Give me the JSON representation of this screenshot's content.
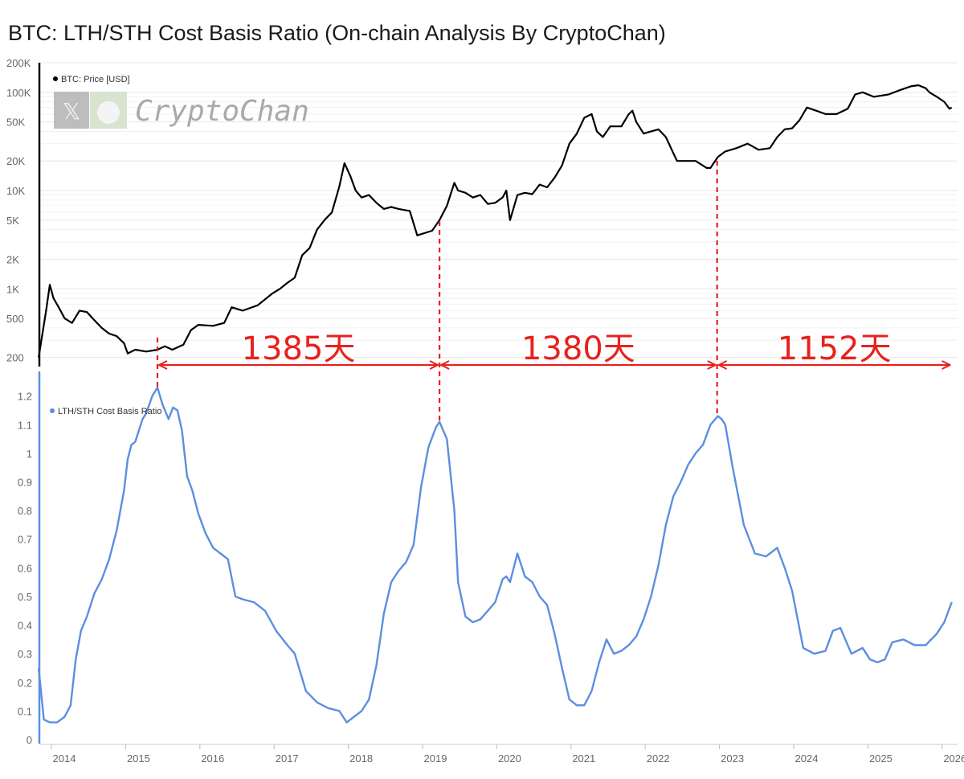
{
  "title": "BTC: LTH/STH Cost Basis Ratio (On-chain Analysis By CryptoChan)",
  "watermark": "CryptoChan",
  "colors": {
    "price": "#000000",
    "ratio": "#5b8fe0",
    "annotation": "#e8211d",
    "grid": "#e6e6e6",
    "axis": "#5b8fe0"
  },
  "chart_data": [
    {
      "type": "line",
      "title": "",
      "scale": "log",
      "ylim": [
        150,
        200000
      ],
      "yticks": [
        200,
        500,
        1000,
        2000,
        5000,
        10000,
        20000,
        50000,
        100000,
        200000
      ],
      "ytick_labels": [
        "200",
        "500",
        "1K",
        "2K",
        "5K",
        "10K",
        "20K",
        "50K",
        "100K",
        "200K"
      ],
      "legend": "top-left",
      "grid": true,
      "series": [
        {
          "name": "BTC: Price [USD]",
          "x": [
            2013.85,
            2013.95,
            2014.0,
            2014.05,
            2014.12,
            2014.2,
            2014.3,
            2014.4,
            2014.5,
            2014.6,
            2014.7,
            2014.8,
            2014.9,
            2015.0,
            2015.05,
            2015.15,
            2015.3,
            2015.45,
            2015.55,
            2015.65,
            2015.8,
            2015.9,
            2016.0,
            2016.2,
            2016.35,
            2016.45,
            2016.6,
            2016.8,
            2017.0,
            2017.1,
            2017.2,
            2017.3,
            2017.4,
            2017.5,
            2017.6,
            2017.7,
            2017.8,
            2017.9,
            2017.97,
            2018.05,
            2018.12,
            2018.2,
            2018.3,
            2018.4,
            2018.5,
            2018.6,
            2018.7,
            2018.85,
            2018.95,
            2019.0,
            2019.15,
            2019.25,
            2019.35,
            2019.45,
            2019.5,
            2019.6,
            2019.7,
            2019.8,
            2019.9,
            2020.0,
            2020.1,
            2020.15,
            2020.2,
            2020.3,
            2020.4,
            2020.5,
            2020.6,
            2020.7,
            2020.8,
            2020.9,
            2021.0,
            2021.1,
            2021.2,
            2021.3,
            2021.37,
            2021.45,
            2021.55,
            2021.6,
            2021.7,
            2021.8,
            2021.85,
            2021.9,
            2022.0,
            2022.1,
            2022.2,
            2022.3,
            2022.4,
            2022.45,
            2022.55,
            2022.7,
            2022.85,
            2022.9,
            2023.0,
            2023.1,
            2023.25,
            2023.4,
            2023.55,
            2023.7,
            2023.8,
            2023.9,
            2024.0,
            2024.1,
            2024.2,
            2024.3,
            2024.45,
            2024.6,
            2024.75,
            2024.85,
            2024.95,
            2025.1,
            2025.3,
            2025.45,
            2025.6,
            2025.7,
            2025.8,
            2025.85,
            2025.95,
            2026.05,
            2026.12,
            2026.15
          ],
          "values": [
            200,
            600,
            1100,
            800,
            650,
            500,
            450,
            600,
            580,
            480,
            400,
            350,
            330,
            280,
            220,
            240,
            230,
            240,
            260,
            240,
            270,
            380,
            430,
            420,
            450,
            650,
            600,
            680,
            900,
            1000,
            1150,
            1300,
            2200,
            2600,
            4000,
            5000,
            6000,
            11000,
            19000,
            14000,
            10000,
            8500,
            9000,
            7500,
            6500,
            6800,
            6500,
            6200,
            3500,
            3600,
            3900,
            5000,
            7000,
            12000,
            10000,
            9500,
            8500,
            9000,
            7300,
            7500,
            8500,
            10000,
            5000,
            9000,
            9500,
            9200,
            11500,
            10800,
            13500,
            18000,
            30000,
            38000,
            55000,
            60000,
            40000,
            35000,
            45000,
            45000,
            45000,
            60000,
            65000,
            50000,
            38000,
            40000,
            42000,
            35000,
            24000,
            20000,
            20000,
            20000,
            17000,
            17000,
            22000,
            25000,
            27000,
            30000,
            26000,
            27000,
            35000,
            42000,
            43000,
            52000,
            70000,
            66000,
            60000,
            60000,
            68000,
            95000,
            100000,
            90000,
            95000,
            105000,
            115000,
            118000,
            110000,
            100000,
            90000,
            80000,
            68000,
            70000
          ]
        }
      ],
      "xlim": [
        2013.75,
        2026.2
      ]
    },
    {
      "type": "line",
      "title": "",
      "ylim": [
        0,
        1.2
      ],
      "yticks": [
        0,
        0.1,
        0.2,
        0.3,
        0.4,
        0.5,
        0.6,
        0.7,
        0.8,
        0.9,
        1,
        1.1,
        1.2
      ],
      "ytick_labels": [
        "0",
        "0.1",
        "0.2",
        "0.3",
        "0.4",
        "0.5",
        "0.6",
        "0.7",
        "0.8",
        "0.9",
        "1",
        "1.1",
        "1.2"
      ],
      "xticks": [
        2014,
        2015,
        2016,
        2017,
        2018,
        2019,
        2020,
        2021,
        2022,
        2023,
        2024,
        2025,
        2026
      ],
      "xtick_labels": [
        "2014",
        "2015",
        "2016",
        "2017",
        "2018",
        "2019",
        "2020",
        "2021",
        "2022",
        "2023",
        "2024",
        "2025",
        "2026"
      ],
      "legend": "top-left",
      "grid": false,
      "series": [
        {
          "name": "LTH/STH Cost Basis Ratio",
          "x": [
            2013.85,
            2013.92,
            2014.0,
            2014.1,
            2014.2,
            2014.28,
            2014.35,
            2014.42,
            2014.5,
            2014.6,
            2014.7,
            2014.8,
            2014.9,
            2015.0,
            2015.05,
            2015.1,
            2015.15,
            2015.2,
            2015.25,
            2015.3,
            2015.38,
            2015.45,
            2015.52,
            2015.6,
            2015.66,
            2015.72,
            2015.78,
            2015.85,
            2015.92,
            2016.0,
            2016.1,
            2016.2,
            2016.3,
            2016.4,
            2016.5,
            2016.6,
            2016.75,
            2016.9,
            2017.05,
            2017.2,
            2017.3,
            2017.45,
            2017.6,
            2017.75,
            2017.9,
            2018.0,
            2018.1,
            2018.2,
            2018.3,
            2018.4,
            2018.5,
            2018.6,
            2018.7,
            2018.8,
            2018.9,
            2019.0,
            2019.1,
            2019.2,
            2019.25,
            2019.35,
            2019.45,
            2019.5,
            2019.6,
            2019.7,
            2019.8,
            2019.9,
            2020.0,
            2020.1,
            2020.15,
            2020.2,
            2020.3,
            2020.4,
            2020.5,
            2020.6,
            2020.7,
            2020.8,
            2020.9,
            2021.0,
            2021.1,
            2021.2,
            2021.3,
            2021.4,
            2021.5,
            2021.6,
            2021.7,
            2021.8,
            2021.9,
            2022.0,
            2022.1,
            2022.2,
            2022.3,
            2022.4,
            2022.5,
            2022.6,
            2022.7,
            2022.8,
            2022.9,
            2023.0,
            2023.05,
            2023.1,
            2023.2,
            2023.35,
            2023.5,
            2023.65,
            2023.8,
            2023.9,
            2024.0,
            2024.15,
            2024.3,
            2024.45,
            2024.55,
            2024.65,
            2024.8,
            2024.95,
            2025.05,
            2025.15,
            2025.25,
            2025.35,
            2025.5,
            2025.65,
            2025.8,
            2025.95,
            2026.05,
            2026.15
          ],
          "values": [
            0.25,
            0.07,
            0.06,
            0.06,
            0.08,
            0.12,
            0.28,
            0.38,
            0.43,
            0.51,
            0.56,
            0.63,
            0.73,
            0.87,
            0.98,
            1.03,
            1.04,
            1.08,
            1.12,
            1.14,
            1.2,
            1.23,
            1.17,
            1.12,
            1.16,
            1.15,
            1.08,
            0.92,
            0.87,
            0.79,
            0.72,
            0.67,
            0.65,
            0.63,
            0.5,
            0.49,
            0.48,
            0.45,
            0.38,
            0.33,
            0.3,
            0.17,
            0.13,
            0.11,
            0.1,
            0.06,
            0.08,
            0.1,
            0.14,
            0.26,
            0.44,
            0.55,
            0.59,
            0.62,
            0.68,
            0.88,
            1.02,
            1.09,
            1.11,
            1.05,
            0.8,
            0.55,
            0.43,
            0.41,
            0.42,
            0.45,
            0.48,
            0.56,
            0.57,
            0.55,
            0.65,
            0.57,
            0.55,
            0.5,
            0.47,
            0.37,
            0.25,
            0.14,
            0.12,
            0.12,
            0.17,
            0.27,
            0.35,
            0.3,
            0.31,
            0.33,
            0.36,
            0.42,
            0.5,
            0.61,
            0.75,
            0.85,
            0.9,
            0.96,
            1.0,
            1.03,
            1.1,
            1.13,
            1.12,
            1.1,
            0.95,
            0.75,
            0.65,
            0.64,
            0.67,
            0.6,
            0.52,
            0.32,
            0.3,
            0.31,
            0.38,
            0.39,
            0.3,
            0.32,
            0.28,
            0.27,
            0.28,
            0.34,
            0.35,
            0.33,
            0.33,
            0.37,
            0.41,
            0.48
          ]
        }
      ],
      "xlim": [
        2013.75,
        2026.2
      ]
    }
  ],
  "annotations": {
    "peak_dates": [
      2015.45,
      2019.25,
      2022.99
    ],
    "intervals": [
      {
        "label": "1385天",
        "from": 2015.45,
        "to": 2019.25
      },
      {
        "label": "1380天",
        "from": 2019.25,
        "to": 2022.99
      },
      {
        "label": "1152天",
        "from": 2022.99,
        "to": 2026.15
      }
    ]
  }
}
